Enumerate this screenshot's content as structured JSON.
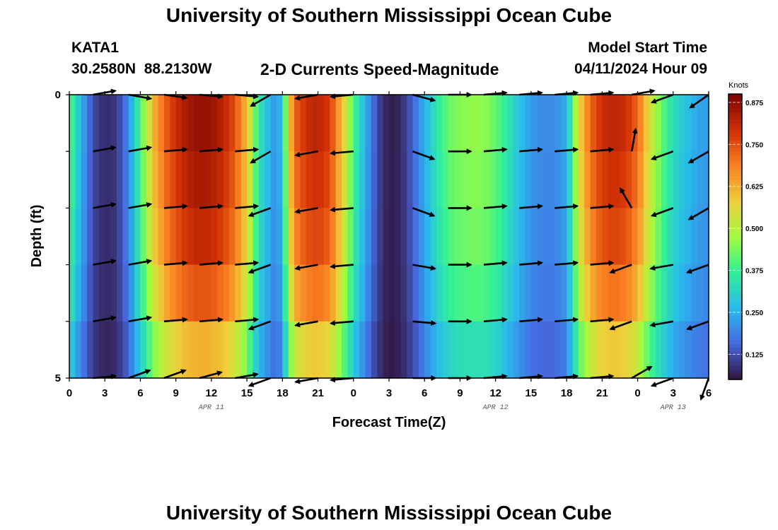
{
  "page": {
    "title": "University of Southern Mississippi Ocean Cube",
    "bottom_title": "University of Southern Mississippi Ocean Cube",
    "station_id": "KATA1",
    "station_coords": "30.2580N  88.2130W",
    "plot_subtitle": "2-D Currents Speed-Magnitude",
    "model_start_label": "Model Start Time",
    "model_start_value": "04/11/2024 Hour 09"
  },
  "chart_data": {
    "type": "heatmap",
    "title": "2-D Currents Speed-Magnitude",
    "xlabel": "Forecast Time(Z)",
    "ylabel": "Depth (ft)",
    "xlim": [
      0,
      54
    ],
    "ylim": [
      5,
      0
    ],
    "x_tick_values": [
      0,
      3,
      6,
      9,
      12,
      15,
      18,
      21,
      24,
      27,
      30,
      33,
      36,
      39,
      42,
      45,
      48,
      51,
      54
    ],
    "x_tick_labels": [
      "0",
      "3",
      "6",
      "9",
      "12",
      "15",
      "18",
      "21",
      "0",
      "3",
      "6",
      "9",
      "12",
      "15",
      "18",
      "21",
      "0",
      "3",
      "6"
    ],
    "y_tick_values": [
      0,
      1,
      2,
      3,
      4,
      5
    ],
    "y_tick_labels": [
      "0",
      "",
      "",
      "",
      "",
      "5"
    ],
    "date_labels": [
      {
        "text": "APR 11",
        "x": 12
      },
      {
        "text": "APR 12",
        "x": 36
      },
      {
        "text": "APR 13",
        "x": 51
      }
    ],
    "colorbar": {
      "title": "Knots",
      "min": 0.05,
      "max": 0.9,
      "tick_values": [
        0.125,
        0.25,
        0.375,
        0.5,
        0.625,
        0.75,
        0.875
      ],
      "tick_labels": [
        "0.125",
        "0.250",
        "0.375",
        "0.500",
        "0.625",
        "0.750",
        "0.875"
      ]
    },
    "time_step_hours": 0.5,
    "depth_levels": [
      0.5,
      1.5,
      2.5,
      3.5,
      4.5
    ],
    "speed_profile": {
      "hours": [
        0,
        1,
        2,
        3,
        4,
        5,
        6,
        7,
        8,
        9,
        10,
        11,
        12,
        13,
        14,
        15,
        16,
        17,
        17.5,
        18,
        18.5,
        19,
        20,
        21,
        22,
        23,
        24,
        25,
        26,
        27,
        28,
        29,
        30,
        31,
        32,
        33,
        34,
        35,
        36,
        37,
        38,
        39,
        40,
        41,
        42,
        43,
        44,
        45,
        46,
        47,
        48,
        49,
        50,
        51,
        52,
        53,
        54
      ],
      "surface_knots": [
        0.42,
        0.25,
        0.12,
        0.08,
        0.1,
        0.2,
        0.4,
        0.6,
        0.72,
        0.8,
        0.85,
        0.87,
        0.86,
        0.82,
        0.75,
        0.6,
        0.35,
        0.25,
        0.2,
        0.3,
        0.55,
        0.72,
        0.8,
        0.82,
        0.78,
        0.6,
        0.4,
        0.25,
        0.12,
        0.06,
        0.08,
        0.15,
        0.25,
        0.35,
        0.42,
        0.45,
        0.46,
        0.46,
        0.42,
        0.35,
        0.28,
        0.22,
        0.2,
        0.2,
        0.25,
        0.55,
        0.72,
        0.8,
        0.82,
        0.8,
        0.72,
        0.55,
        0.42,
        0.33,
        0.28,
        0.24,
        0.22
      ],
      "depth_factors": [
        1.0,
        0.97,
        0.93,
        0.85,
        0.7
      ]
    },
    "vector_hours": [
      2,
      5,
      8,
      11,
      14,
      17,
      21,
      24,
      29,
      32,
      35,
      38,
      41,
      44,
      47.5,
      51,
      54
    ],
    "vector_depths": [
      0,
      1,
      2,
      3,
      4,
      5
    ],
    "vector_directions_deg": [
      [
        10,
        -10,
        -8,
        -5,
        -5,
        -150,
        -170,
        -175,
        -15,
        0,
        5,
        5,
        5,
        5,
        10,
        -160,
        -145
      ],
      [
        10,
        10,
        5,
        5,
        5,
        -150,
        -170,
        -175,
        -20,
        0,
        5,
        5,
        5,
        5,
        80,
        -160,
        -150
      ],
      [
        10,
        10,
        5,
        5,
        5,
        -160,
        -170,
        -175,
        -20,
        0,
        5,
        5,
        5,
        5,
        120,
        -160,
        -150
      ],
      [
        10,
        10,
        5,
        5,
        5,
        -160,
        -170,
        -175,
        -10,
        0,
        5,
        5,
        5,
        5,
        -160,
        -170,
        -160
      ],
      [
        10,
        10,
        5,
        5,
        5,
        -160,
        -170,
        -175,
        -5,
        0,
        5,
        5,
        5,
        5,
        -160,
        -170,
        -160
      ],
      [
        5,
        20,
        20,
        15,
        10,
        -160,
        -170,
        -175,
        0,
        0,
        5,
        5,
        5,
        5,
        30,
        -160,
        -110
      ]
    ]
  }
}
